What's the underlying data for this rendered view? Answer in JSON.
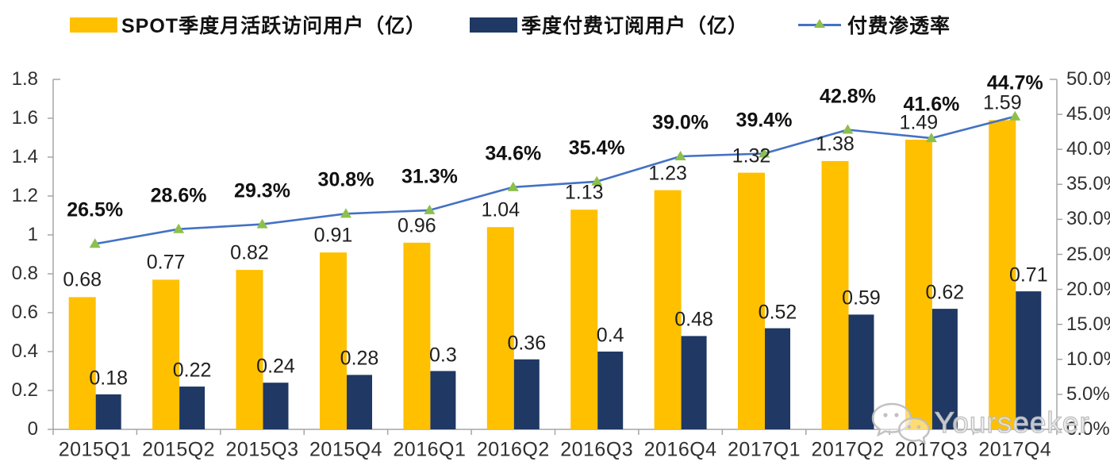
{
  "legend": {
    "items": [
      {
        "label": "SPOT季度月活跃访问用户（亿）",
        "swatch": "bar",
        "color": "#FFC000"
      },
      {
        "label": "季度付费订阅用户（亿）",
        "swatch": "bar",
        "color": "#1F3864"
      },
      {
        "label": "付费渗透率",
        "swatch": "line",
        "color": "#4472C4",
        "marker_color": "#8CBF4D"
      }
    ]
  },
  "chart_data": {
    "type": "bar",
    "subtype": "combo-bar-line-dual-axis",
    "title": "",
    "xlabel": "",
    "ylabel_left": "",
    "ylabel_right": "",
    "grid": false,
    "legend_position": "top",
    "categories": [
      "2015Q1",
      "2015Q2",
      "2015Q3",
      "2015Q4",
      "2016Q1",
      "2016Q2",
      "2016Q3",
      "2016Q4",
      "2017Q1",
      "2017Q2",
      "2017Q3",
      "2017Q4"
    ],
    "series": [
      {
        "name": "SPOT季度月活跃访问用户（亿）",
        "type": "bar",
        "axis": "left",
        "color": "#FFC000",
        "values": [
          0.68,
          0.77,
          0.82,
          0.91,
          0.96,
          1.04,
          1.13,
          1.23,
          1.32,
          1.38,
          1.49,
          1.59
        ],
        "labels": [
          "0.68",
          "0.77",
          "0.82",
          "0.91",
          "0.96",
          "1.04",
          "1.13",
          "1.23",
          "1.32",
          "1.38",
          "1.49",
          "1.59"
        ]
      },
      {
        "name": "季度付费订阅用户（亿）",
        "type": "bar",
        "axis": "left",
        "color": "#1F3864",
        "values": [
          0.18,
          0.22,
          0.24,
          0.28,
          0.3,
          0.36,
          0.4,
          0.48,
          0.52,
          0.59,
          0.62,
          0.71
        ],
        "labels": [
          "0.18",
          "0.22",
          "0.24",
          "0.28",
          "0.3",
          "0.36",
          "0.4",
          "0.48",
          "0.52",
          "0.59",
          "0.62",
          "0.71"
        ]
      },
      {
        "name": "付费渗透率",
        "type": "line",
        "axis": "right",
        "color": "#4472C4",
        "marker": "triangle",
        "marker_color": "#8CBF4D",
        "values": [
          26.5,
          28.6,
          29.3,
          30.8,
          31.3,
          34.6,
          35.4,
          39.0,
          39.4,
          42.8,
          41.6,
          44.7
        ],
        "labels": [
          "26.5%",
          "28.6%",
          "29.3%",
          "30.8%",
          "31.3%",
          "34.6%",
          "35.4%",
          "39.0%",
          "39.4%",
          "42.8%",
          "41.6%",
          "44.7%"
        ]
      }
    ],
    "left_axis": {
      "min": 0,
      "max": 1.8,
      "tick_step": 0.2,
      "tick_labels": [
        "0",
        "0.2",
        "0.4",
        "0.6",
        "0.8",
        "1",
        "1.2",
        "1.4",
        "1.6",
        "1.8"
      ]
    },
    "right_axis": {
      "min": 0,
      "max": 50,
      "tick_step": 5,
      "tick_labels": [
        "0.0%",
        "5.0%",
        "10.0%",
        "15.0%",
        "20.0%",
        "25.0%",
        "30.0%",
        "35.0%",
        "40.0%",
        "45.0%",
        "50.0%"
      ]
    },
    "axis_color": "#A6A6A6"
  },
  "watermark": {
    "text": "Yourseeker",
    "icon": "wechat-icon"
  }
}
